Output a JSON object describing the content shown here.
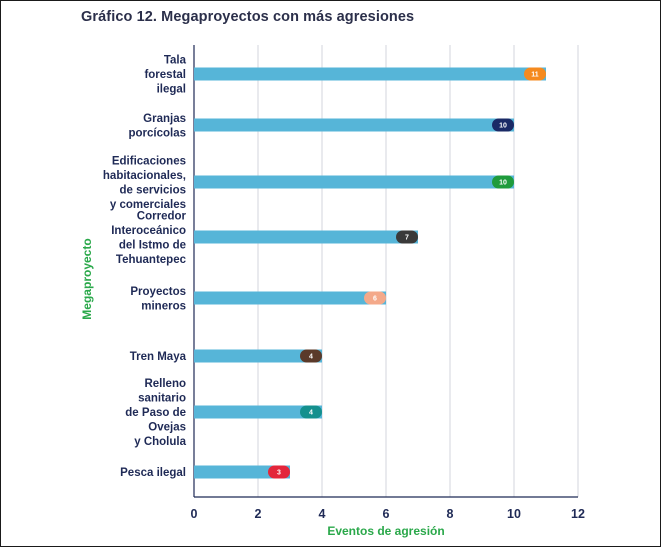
{
  "chart_data": {
    "type": "bar",
    "orientation": "horizontal",
    "title": "Gráfico 12. Megaproyectos con más agresiones",
    "xlabel": "Eventos de agresión",
    "ylabel": "Megaproyecto",
    "xlim": [
      0,
      12
    ],
    "xticks": [
      "0",
      "2",
      "4",
      "6",
      "8",
      "10",
      "12"
    ],
    "grid": "vertical",
    "categories": [
      [
        "Tala",
        "forestal",
        "ilegal"
      ],
      [
        "Granjas",
        "porcícolas"
      ],
      [
        "Edificaciones",
        "habitacionales,",
        "de servicios",
        "y comerciales"
      ],
      [
        "Corredor",
        "Interoceánico",
        "del Istmo de",
        "Tehuantepec"
      ],
      [
        "Proyectos",
        "mineros"
      ],
      [
        "Tren Maya"
      ],
      [
        "Relleno",
        "sanitario",
        "de Paso de",
        "Ovejas",
        "y Cholula"
      ],
      [
        "Pesca ilegal"
      ]
    ],
    "values": [
      11,
      10,
      10,
      7,
      6,
      4,
      4,
      3
    ],
    "value_labels": [
      "11",
      "10",
      "10",
      "7",
      "6",
      "4",
      "4",
      "3"
    ],
    "bar_color": "#56b5d8",
    "badge_colors": [
      "#f58a1f",
      "#1a2a66",
      "#1f9b3c",
      "#3a3a3a",
      "#f4a98a",
      "#5a3a2a",
      "#14908e",
      "#e3263b"
    ]
  }
}
